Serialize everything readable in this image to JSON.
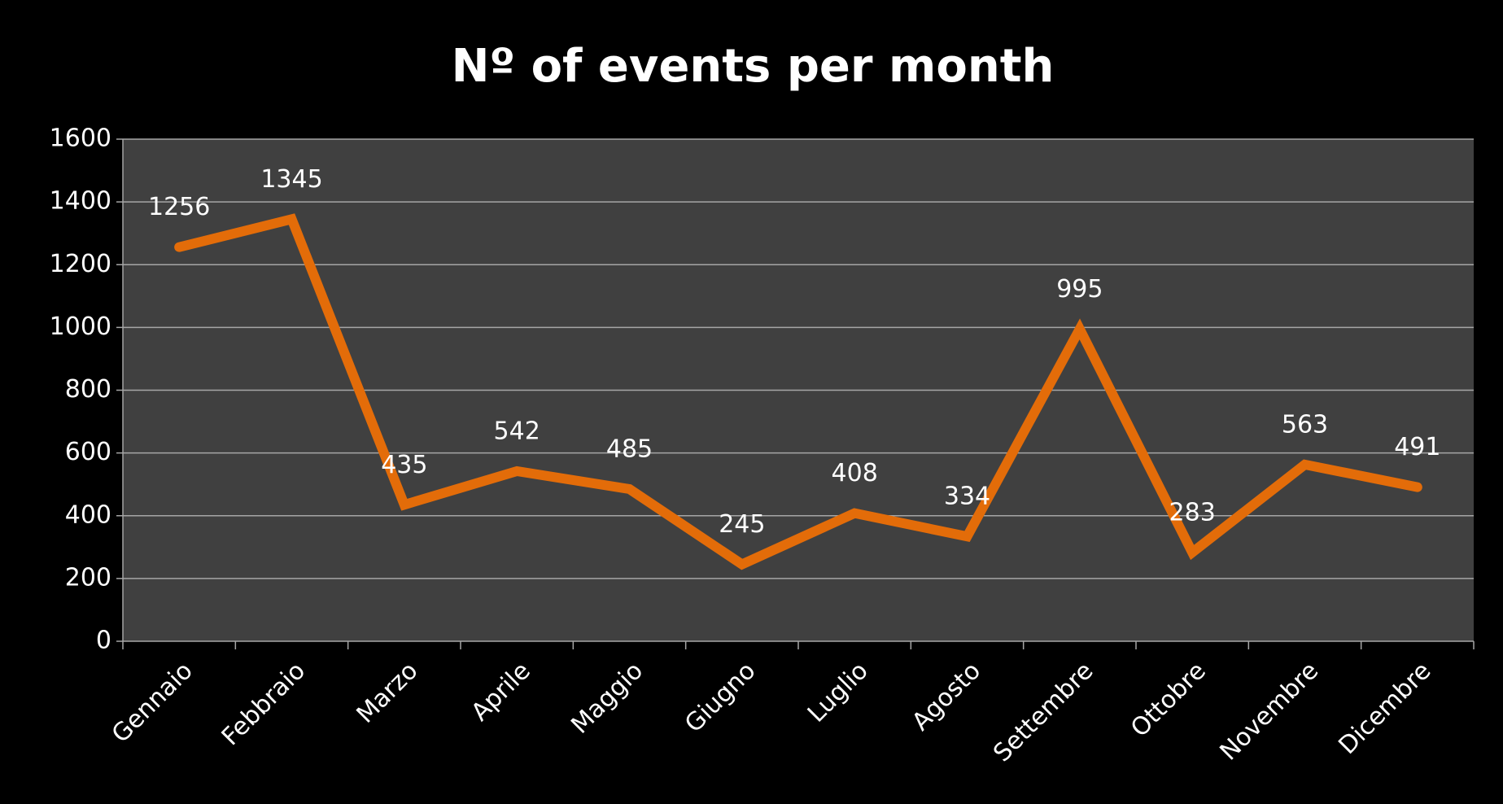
{
  "chart_data": {
    "type": "line",
    "title": "Nº of events per month",
    "categories": [
      "Gennaio",
      "Febbraio",
      "Marzo",
      "Aprile",
      "Maggio",
      "Giugno",
      "Luglio",
      "Agosto",
      "Settembre",
      "Ottobre",
      "Novembre",
      "Dicembre"
    ],
    "series": [
      {
        "name": "Events",
        "color": "#e36c09",
        "values": [
          1256,
          1345,
          435,
          542,
          485,
          245,
          408,
          334,
          995,
          283,
          563,
          491
        ]
      }
    ],
    "ylim": [
      0,
      1600
    ],
    "yticks": [
      0,
      200,
      400,
      600,
      800,
      1000,
      1200,
      1400,
      1600
    ],
    "grid": true
  }
}
